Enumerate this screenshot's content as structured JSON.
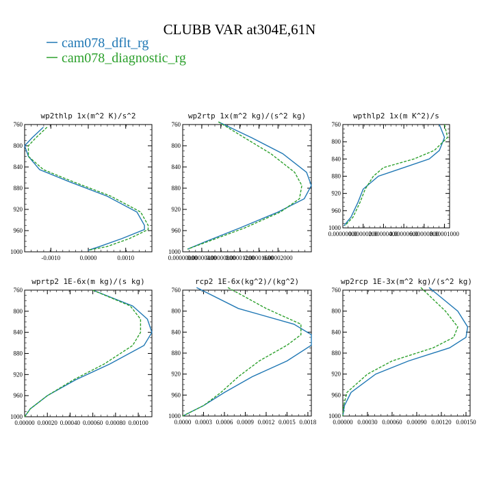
{
  "figure": {
    "title": "CLUBB VAR at304E,61N",
    "legend": [
      {
        "label": "cam078_dflt_rg",
        "color": "#1f77b4",
        "dash": false
      },
      {
        "label": "cam078_diagnostic_rg",
        "color": "#2ca02c",
        "dash": true
      }
    ]
  },
  "chart_data": [
    {
      "type": "line",
      "title": "wp2thlp  1x(m^2 K)/s^2",
      "xlim": [
        -0.0017,
        0.0017
      ],
      "ylim": [
        760,
        1000
      ],
      "y_reversed": true,
      "xtick_labels": [
        "-0.0010",
        "0.0000",
        "0.0010"
      ],
      "xticks": [
        -0.001,
        0.0,
        0.001
      ],
      "yticks": [
        760,
        800,
        840,
        880,
        920,
        960,
        1000
      ],
      "series": [
        {
          "name": "cam078_dflt_rg",
          "x": [
            -0.0012,
            -0.0015,
            -0.0017,
            -0.0016,
            -0.0013,
            -0.0005,
            0.0005,
            0.0013,
            0.0015,
            0.0015,
            0.0009,
            0.0003,
            0.0
          ],
          "y": [
            765,
            785,
            800,
            820,
            845,
            868,
            895,
            925,
            950,
            958,
            975,
            990,
            997
          ]
        },
        {
          "name": "cam078_diagnostic_rg",
          "x": [
            -0.0011,
            -0.0014,
            -0.0016,
            -0.0016,
            -0.0012,
            -0.0004,
            0.0006,
            0.0014,
            0.0016,
            0.0016,
            0.0011,
            0.0005,
            0.0
          ],
          "y": [
            765,
            785,
            800,
            820,
            845,
            868,
            895,
            925,
            950,
            958,
            975,
            990,
            997
          ]
        }
      ]
    },
    {
      "type": "line",
      "title": "wp2rtp  1x(m^2 kg)/(s^2 kg)",
      "xlim": [
        0.0,
        2.7e-05
      ],
      "ylim": [
        760,
        1000
      ],
      "y_reversed": true,
      "xtick_labels": [
        "0.00000000",
        "0.00000400",
        "0.00000800",
        "0.00001200",
        "0.00001600",
        "0.00002000"
      ],
      "xticks": [
        0.0,
        4e-06,
        8e-06,
        1.2e-05,
        1.6e-05,
        2e-05
      ],
      "yticks": [
        760,
        800,
        840,
        880,
        920,
        960,
        1000
      ],
      "series": [
        {
          "name": "cam078_dflt_rg",
          "x": [
            7.5e-06,
            1.45e-05,
            2.1e-05,
            2.6e-05,
            2.7e-05,
            2.55e-05,
            2e-05,
            1.2e-05,
            5e-06,
            1e-06
          ],
          "y": [
            755,
            785,
            815,
            850,
            875,
            900,
            925,
            955,
            980,
            995
          ]
        },
        {
          "name": "cam078_diagnostic_rg",
          "x": [
            7.5e-06,
            1.3e-05,
            1.85e-05,
            2.35e-05,
            2.5e-05,
            2.45e-05,
            2.05e-05,
            1.3e-05,
            5.5e-06,
            1e-06
          ],
          "y": [
            755,
            785,
            815,
            850,
            875,
            900,
            925,
            955,
            980,
            995
          ]
        }
      ]
    },
    {
      "type": "line",
      "title": "wpthlp2  1x(m K^2)/s",
      "xlim": [
        0.0,
        1.05e-05
      ],
      "ylim": [
        760,
        1000
      ],
      "y_reversed": true,
      "xtick_labels": [
        "0.00000000",
        "0.00000200",
        "0.00000400",
        "0.00000600",
        "0.00000800",
        "0.00001000"
      ],
      "xticks": [
        0.0,
        2e-06,
        4e-06,
        6e-06,
        8e-06,
        1e-05
      ],
      "yticks": [
        760,
        800,
        840,
        880,
        920,
        960,
        1000
      ],
      "series": [
        {
          "name": "cam078_dflt_rg",
          "x": [
            9.5e-06,
            1e-05,
            9.5e-06,
            8.5e-06,
            6e-06,
            3.5e-06,
            2e-06,
            1.5e-06,
            8e-07,
            1e-07
          ],
          "y": [
            760,
            790,
            820,
            840,
            860,
            880,
            910,
            940,
            975,
            995
          ]
        },
        {
          "name": "cam078_diagnostic_rg",
          "x": [
            1e-05,
            1.03e-05,
            9e-06,
            7e-06,
            4e-06,
            3e-06,
            2.2e-06,
            1.7e-06,
            1e-06,
            2e-07
          ],
          "y": [
            760,
            790,
            820,
            840,
            860,
            880,
            910,
            940,
            975,
            995
          ]
        }
      ]
    },
    {
      "type": "line",
      "title": "wprtp2  1E-6x(m kg)/(s kg)",
      "xlim": [
        0.0,
        0.00112
      ],
      "ylim": [
        760,
        1000
      ],
      "y_reversed": true,
      "xtick_labels": [
        "0.00000",
        "0.00020",
        "0.00040",
        "0.00060",
        "0.00080",
        "0.00100"
      ],
      "xticks": [
        0.0,
        0.0002,
        0.0004,
        0.0006,
        0.0008,
        0.001
      ],
      "yticks": [
        760,
        800,
        840,
        880,
        920,
        960,
        1000
      ],
      "series": [
        {
          "name": "cam078_dflt_rg",
          "x": [
            0.0006,
            0.00095,
            0.00108,
            0.00112,
            0.00105,
            0.00075,
            0.00045,
            0.0002,
            5e-05,
            0.0
          ],
          "y": [
            760,
            790,
            815,
            840,
            865,
            900,
            930,
            960,
            985,
            1000
          ]
        },
        {
          "name": "cam078_diagnostic_rg",
          "x": [
            0.0006,
            0.00093,
            0.00102,
            0.00102,
            0.00095,
            0.0007,
            0.00043,
            0.0002,
            5e-05,
            0.0
          ],
          "y": [
            760,
            790,
            815,
            840,
            865,
            900,
            930,
            960,
            985,
            1000
          ]
        }
      ]
    },
    {
      "type": "line",
      "title": "rcp2  1E-6x(kg^2)/(kg^2)",
      "xlim": [
        0.0,
        0.00185
      ],
      "ylim": [
        760,
        1000
      ],
      "y_reversed": true,
      "xtick_labels": [
        "0.0000",
        "0.0003",
        "0.0006",
        "0.0009",
        "0.0012",
        "0.0015",
        "0.0018"
      ],
      "xticks": [
        0.0,
        0.0003,
        0.0006,
        0.0009,
        0.0012,
        0.0015,
        0.0018
      ],
      "yticks": [
        760,
        800,
        840,
        880,
        920,
        960,
        1000
      ],
      "series": [
        {
          "name": "cam078_dflt_rg",
          "x": [
            0.0002,
            0.0008,
            0.0016,
            0.00185,
            0.00185,
            0.0015,
            0.001,
            0.0006,
            0.0003,
            0.0
          ],
          "y": [
            755,
            795,
            825,
            845,
            865,
            895,
            925,
            955,
            980,
            1000
          ]
        },
        {
          "name": "cam078_diagnostic_rg",
          "x": [
            0.00065,
            0.0012,
            0.0017,
            0.0017,
            0.0015,
            0.0011,
            0.0008,
            0.00055,
            0.0003,
            0.0
          ],
          "y": [
            755,
            795,
            825,
            845,
            865,
            895,
            925,
            955,
            980,
            1000
          ]
        }
      ]
    },
    {
      "type": "line",
      "title": "wp2rcp  1E-3x(m^2 kg)/(s^2 kg)",
      "xlim": [
        0.0,
        0.00155
      ],
      "ylim": [
        760,
        1000
      ],
      "y_reversed": true,
      "xtick_labels": [
        "0.00000",
        "0.00030",
        "0.00060",
        "0.00090",
        "0.00120",
        "0.00150"
      ],
      "xticks": [
        0.0,
        0.0003,
        0.0006,
        0.0009,
        0.0012,
        0.0015
      ],
      "yticks": [
        760,
        800,
        840,
        880,
        920,
        960,
        1000
      ],
      "series": [
        {
          "name": "cam078_dflt_rg",
          "x": [
            0.00105,
            0.0014,
            0.00152,
            0.0015,
            0.0013,
            0.0008,
            0.0004,
            0.0001,
            2e-05,
            0.0
          ],
          "y": [
            755,
            800,
            830,
            850,
            870,
            895,
            920,
            955,
            980,
            1000
          ]
        },
        {
          "name": "cam078_diagnostic_rg",
          "x": [
            0.00095,
            0.00125,
            0.0014,
            0.00135,
            0.0011,
            0.0006,
            0.0003,
            5e-05,
            1e-05,
            0.0
          ],
          "y": [
            755,
            800,
            830,
            850,
            870,
            895,
            920,
            955,
            980,
            1000
          ]
        }
      ]
    }
  ]
}
